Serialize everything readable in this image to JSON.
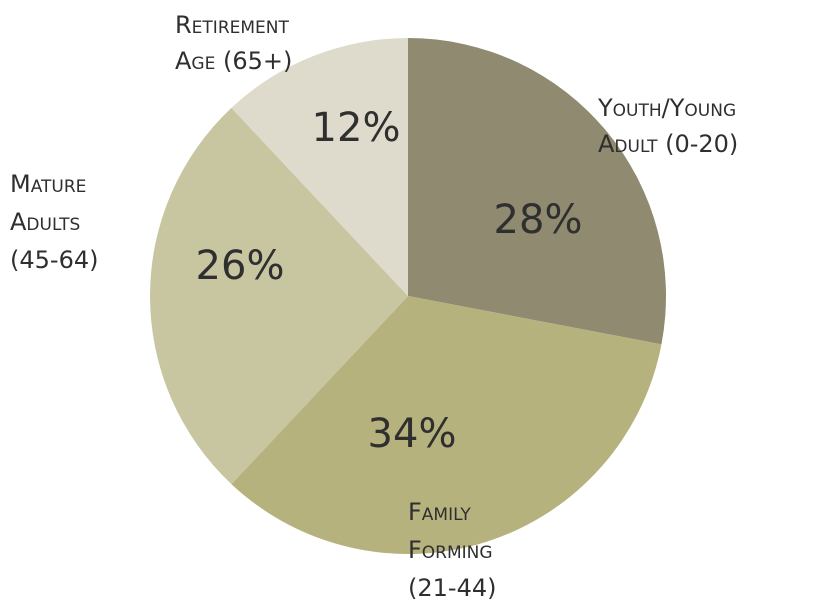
{
  "chart_data": {
    "type": "pie",
    "title": "",
    "categories": [
      "Youth/Young Adult (0-20)",
      "Family Forming (21-44)",
      "Mature Adults (45-64)",
      "Retirement Age (65+)"
    ],
    "values": [
      28,
      34,
      26,
      12
    ],
    "units": "%",
    "labels": [
      {
        "lines": [
          "Youth/Young",
          "Adult (0-20)"
        ],
        "pct": "28%"
      },
      {
        "lines": [
          "Family",
          "Forming",
          "(21-44)"
        ],
        "pct": "34%"
      },
      {
        "lines": [
          "Mature",
          "Adults",
          "(45-64)"
        ],
        "pct": "26%"
      },
      {
        "lines": [
          "Retirement",
          "Age (65+)"
        ],
        "pct": "12%"
      }
    ],
    "colors": [
      "#8f8a70",
      "#b6b27e",
      "#c8c6a0",
      "#dedbcc"
    ],
    "legend": "none"
  }
}
